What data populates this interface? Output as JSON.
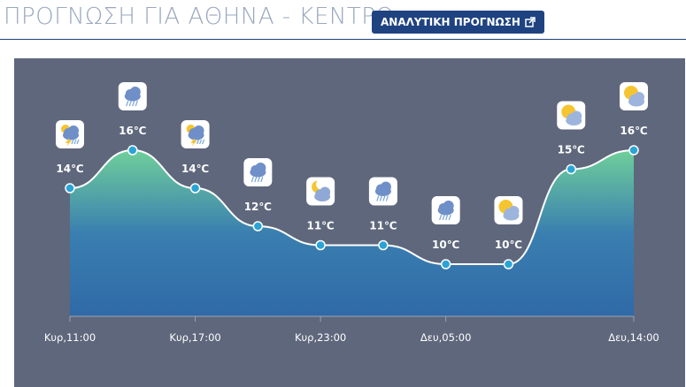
{
  "header": {
    "title": "ΠΡΟΓΝΩΣΗ ΓΙΑ ΑΘΗΝΑ - ΚΕΝΤΡΟ",
    "detail_button": "ΑΝΑΛΥΤΙΚΗ ΠΡΟΓΝΩΣΗ",
    "detail_icon": "external-link-icon"
  },
  "colors": {
    "chart_bg": "#5f677c",
    "area_top": "#6fcf9a",
    "area_bottom": "#2f6aa7",
    "line": "#ffffff",
    "point": "#2aa3d6",
    "title": "#9aa7bd",
    "button": "#1f4381"
  },
  "chart_data": {
    "type": "area",
    "x": [
      "Κυρ,11:00",
      "",
      "Κυρ,17:00",
      "",
      "Κυρ,23:00",
      "",
      "Δευ,05:00",
      "",
      "",
      "Δευ,14:00"
    ],
    "tick_labels": [
      "Κυρ,11:00",
      "Κυρ,17:00",
      "Κυρ,23:00",
      "Δευ,05:00",
      "Δευ,14:00"
    ],
    "tick_index": [
      0,
      2,
      4,
      6,
      9
    ],
    "values": [
      14,
      16,
      14,
      12,
      11,
      11,
      10,
      10,
      15,
      16
    ],
    "labels": [
      "14℃",
      "16℃",
      "14℃",
      "12℃",
      "11℃",
      "11℃",
      "10℃",
      "10℃",
      "15℃",
      "16℃"
    ],
    "icons": [
      "thunder-rain-icon",
      "cloud-rain-icon",
      "thunder-rain-icon",
      "cloud-rain-icon",
      "moon-cloud-icon",
      "cloud-rain-icon",
      "cloud-rain-icon",
      "sun-cloud-icon",
      "sun-cloud-icon",
      "sun-cloud-icon"
    ],
    "ylim": [
      0,
      16
    ]
  }
}
